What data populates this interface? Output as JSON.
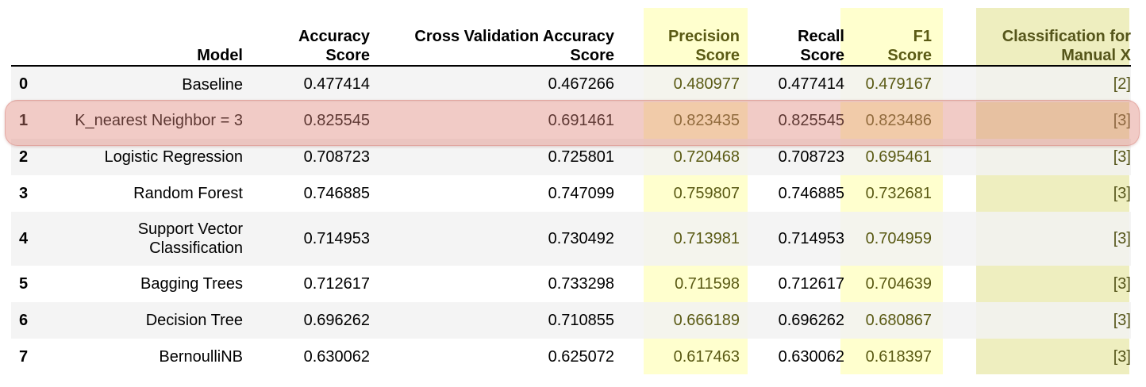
{
  "table": {
    "headers": {
      "index": "",
      "model": "Model",
      "accuracy": [
        "Accuracy",
        "Score"
      ],
      "cv_accuracy": [
        "Cross Validation Accuracy",
        "Score"
      ],
      "precision": [
        "Precision",
        "Score"
      ],
      "recall": [
        "Recall",
        "Score"
      ],
      "f1": [
        "F1",
        "Score"
      ],
      "classification": [
        "Classification for",
        "Manual X"
      ]
    },
    "rows": [
      {
        "idx": "0",
        "model": [
          "Baseline"
        ],
        "accuracy": "0.477414",
        "cv_accuracy": "0.467266",
        "precision": "0.480977",
        "recall": "0.477414",
        "f1": "0.479167",
        "classification": "[2]"
      },
      {
        "idx": "1",
        "model": [
          "K_nearest Neighbor = 3"
        ],
        "accuracy": "0.825545",
        "cv_accuracy": "0.691461",
        "precision": "0.823435",
        "recall": "0.825545",
        "f1": "0.823486",
        "classification": "[3]"
      },
      {
        "idx": "2",
        "model": [
          "Logistic Regression"
        ],
        "accuracy": "0.708723",
        "cv_accuracy": "0.725801",
        "precision": "0.720468",
        "recall": "0.708723",
        "f1": "0.695461",
        "classification": "[3]"
      },
      {
        "idx": "3",
        "model": [
          "Random Forest"
        ],
        "accuracy": "0.746885",
        "cv_accuracy": "0.747099",
        "precision": "0.759807",
        "recall": "0.746885",
        "f1": "0.732681",
        "classification": "[3]"
      },
      {
        "idx": "4",
        "model": [
          "Support Vector",
          "Classification"
        ],
        "accuracy": "0.714953",
        "cv_accuracy": "0.730492",
        "precision": "0.713981",
        "recall": "0.714953",
        "f1": "0.704959",
        "classification": "[3]"
      },
      {
        "idx": "5",
        "model": [
          "Bagging Trees"
        ],
        "accuracy": "0.712617",
        "cv_accuracy": "0.733298",
        "precision": "0.711598",
        "recall": "0.712617",
        "f1": "0.704639",
        "classification": "[3]"
      },
      {
        "idx": "6",
        "model": [
          "Decision Tree"
        ],
        "accuracy": "0.696262",
        "cv_accuracy": "0.710855",
        "precision": "0.666189",
        "recall": "0.696262",
        "f1": "0.680867",
        "classification": "[3]"
      },
      {
        "idx": "7",
        "model": [
          "BernoulliNB"
        ],
        "accuracy": "0.630062",
        "cv_accuracy": "0.625072",
        "precision": "0.617463",
        "recall": "0.630062",
        "f1": "0.618397",
        "classification": "[3]"
      }
    ],
    "highlighted_row_index": 1
  },
  "colors": {
    "column_highlight": "#fffcbe",
    "classification_highlight": "#e8e8aa",
    "row_highlight": "#de8278",
    "highlighted_text": "#5a5a14"
  }
}
